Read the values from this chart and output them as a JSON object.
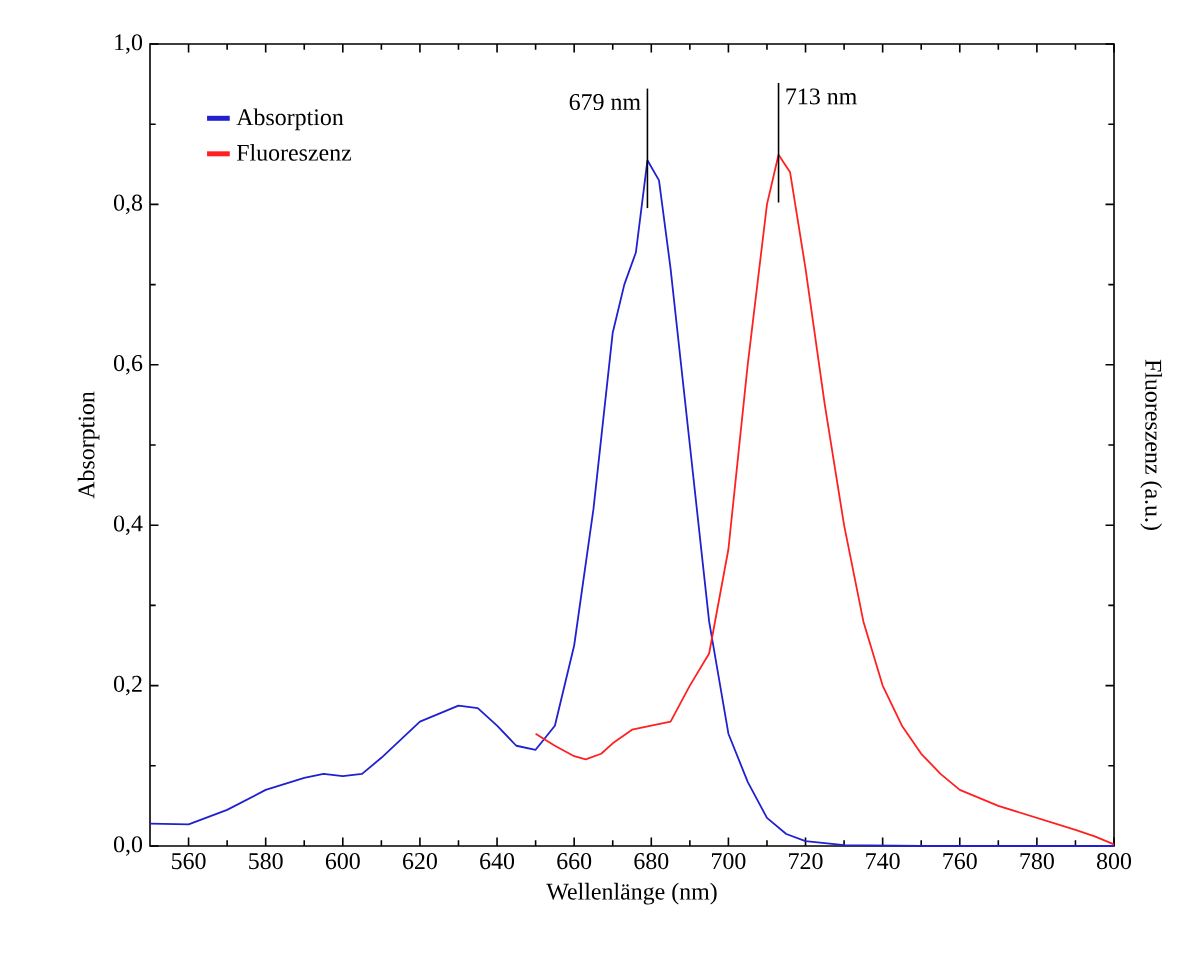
{
  "chart_data": {
    "type": "line",
    "xlabel": "Wellenlänge (nm)",
    "ylabel": "Absorption",
    "y2label": "Fluoreszenz (a.u.)",
    "xlim": [
      550,
      800
    ],
    "ylim": [
      0,
      1.0
    ],
    "xticks": [
      560,
      580,
      600,
      620,
      640,
      660,
      680,
      700,
      720,
      740,
      760,
      780,
      800
    ],
    "yticks": [
      {
        "value": 0,
        "label": "0,0"
      },
      {
        "value": 0.2,
        "label": "0,2"
      },
      {
        "value": 0.4,
        "label": "0,4"
      },
      {
        "value": 0.6,
        "label": "0,6"
      },
      {
        "value": 0.8,
        "label": "0,8"
      },
      {
        "value": 1.0,
        "label": "1,0"
      }
    ],
    "legend": "top left",
    "grid": false,
    "marker": "none",
    "line_style": "solid",
    "series": [
      {
        "name": "Absorption",
        "color": "#2020d0",
        "x": [
          550,
          560,
          570,
          580,
          590,
          595,
          600,
          605,
          610,
          620,
          630,
          635,
          640,
          645,
          650,
          655,
          660,
          665,
          670,
          673,
          676,
          679,
          682,
          685,
          690,
          695,
          700,
          705,
          710,
          715,
          720,
          730,
          750,
          800
        ],
        "values": [
          0.028,
          0.027,
          0.045,
          0.07,
          0.085,
          0.09,
          0.087,
          0.09,
          0.11,
          0.155,
          0.175,
          0.172,
          0.15,
          0.125,
          0.12,
          0.15,
          0.25,
          0.42,
          0.64,
          0.7,
          0.74,
          0.855,
          0.83,
          0.72,
          0.5,
          0.28,
          0.14,
          0.08,
          0.035,
          0.015,
          0.006,
          0.001,
          0,
          0
        ]
      },
      {
        "name": "Fluoreszenz",
        "color": "#ff2020",
        "x": [
          650,
          655,
          660,
          663,
          667,
          670,
          675,
          680,
          685,
          690,
          695,
          700,
          705,
          710,
          713,
          716,
          720,
          725,
          730,
          735,
          740,
          745,
          750,
          755,
          760,
          770,
          780,
          790,
          795,
          800
        ],
        "values": [
          0.14,
          0.125,
          0.112,
          0.108,
          0.115,
          0.128,
          0.145,
          0.15,
          0.155,
          0.2,
          0.24,
          0.37,
          0.6,
          0.8,
          0.862,
          0.84,
          0.72,
          0.55,
          0.4,
          0.28,
          0.2,
          0.15,
          0.115,
          0.09,
          0.07,
          0.05,
          0.035,
          0.02,
          0.012,
          0.002
        ]
      }
    ],
    "annotations": [
      {
        "text": "679 nm",
        "x": 679,
        "y": 0.855
      },
      {
        "text": "713 nm",
        "x": 713,
        "y": 0.862
      }
    ]
  }
}
